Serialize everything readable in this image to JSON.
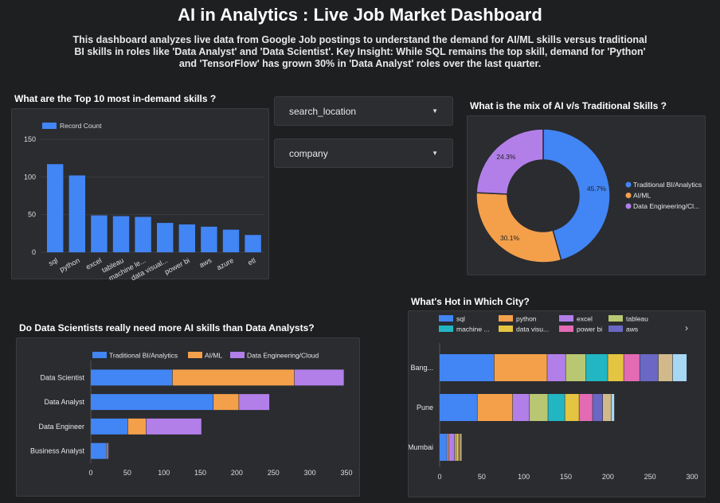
{
  "header": {
    "title": "AI in Analytics : Live Job Market Dashboard",
    "description": "This dashboard analyzes live data from Google Job postings to understand the demand for AI/ML skills versus traditional BI skills in roles like 'Data Analyst' and 'Data Scientist'. Key Insight: While SQL remains the top skill, demand for 'Python' and 'TensorFlow' has grown 30% in 'Data Analyst' roles over the last quarter."
  },
  "filters": {
    "location_label": "search_location",
    "company_label": "company"
  },
  "sections": {
    "top_skills_title": "What are the Top 10 most in-demand skills ?",
    "mix_title": "What is the mix of AI v/s Traditional Skills ?",
    "roles_title": "Do Data Scientists really need more AI skills than Data Analysts?",
    "city_title": "What's Hot in Which City?"
  },
  "colors": {
    "blue": "#4285f4",
    "orange": "#f4a04b",
    "purple": "#b27fe9",
    "olive": "#b9c772",
    "teal": "#22b6c2",
    "yellow": "#e4c441",
    "pink": "#e36bb3",
    "indigo": "#6a68c4",
    "tan": "#d1b98c",
    "lightblue": "#a6d8f3"
  },
  "chart_data": [
    {
      "id": "top-skills",
      "type": "bar",
      "legend": "Record Count",
      "categories": [
        "sql",
        "python",
        "excel",
        "tableau",
        "machine le...",
        "data visual...",
        "power bi",
        "aws",
        "azure",
        "etl"
      ],
      "values": [
        117,
        102,
        49,
        48,
        47,
        39,
        37,
        34,
        30,
        23
      ],
      "yticks": [
        0,
        50,
        100,
        150
      ],
      "ylim": [
        0,
        150
      ],
      "grid": true
    },
    {
      "id": "skill-mix",
      "type": "pie",
      "donut": true,
      "labels": [
        "Traditional BI/Analytics",
        "AI/ML",
        "Data Engineering/Cl..."
      ],
      "values": [
        45.7,
        30.1,
        24.3
      ],
      "value_labels": [
        "45.7%",
        "30.1%",
        "24.3%"
      ],
      "legend_position": "right"
    },
    {
      "id": "roles",
      "type": "bar",
      "orientation": "horizontal",
      "stacked": true,
      "categories": [
        "Data Scientist",
        "Data Analyst",
        "Data Engineer",
        "Business Analyst"
      ],
      "series": [
        {
          "name": "Traditional BI/Analytics",
          "values": [
            112,
            168,
            51,
            22
          ]
        },
        {
          "name": "AI/ML",
          "values": [
            167,
            35,
            25,
            2
          ]
        },
        {
          "name": "Data Engineering/Cloud",
          "values": [
            68,
            42,
            76,
            1
          ]
        }
      ],
      "xticks": [
        0,
        50,
        100,
        150,
        200,
        250,
        300,
        350
      ],
      "xlim": [
        0,
        350
      ],
      "legend_position": "top"
    },
    {
      "id": "city",
      "type": "bar",
      "orientation": "horizontal",
      "stacked": true,
      "categories": [
        "Bang...",
        "Pune",
        "Mumbai"
      ],
      "series": [
        {
          "name": "sql",
          "values": [
            65,
            45,
            9
          ]
        },
        {
          "name": "python",
          "values": [
            63,
            42,
            2
          ]
        },
        {
          "name": "excel",
          "values": [
            22,
            20,
            7
          ]
        },
        {
          "name": "tableau",
          "values": [
            24,
            22,
            2
          ]
        },
        {
          "name": "machine ...",
          "values": [
            26,
            20,
            0
          ]
        },
        {
          "name": "data visu...",
          "values": [
            19,
            17,
            3
          ]
        },
        {
          "name": "power bi",
          "values": [
            19,
            16,
            1
          ]
        },
        {
          "name": "aws",
          "values": [
            22,
            12,
            0
          ]
        },
        {
          "name": "",
          "values": [
            17,
            10,
            2
          ]
        },
        {
          "name": "",
          "values": [
            17,
            4,
            1
          ]
        }
      ],
      "xticks": [
        0,
        50,
        100,
        150,
        200,
        250,
        300
      ],
      "xlim": [
        0,
        300
      ],
      "legend_position": "top"
    }
  ]
}
